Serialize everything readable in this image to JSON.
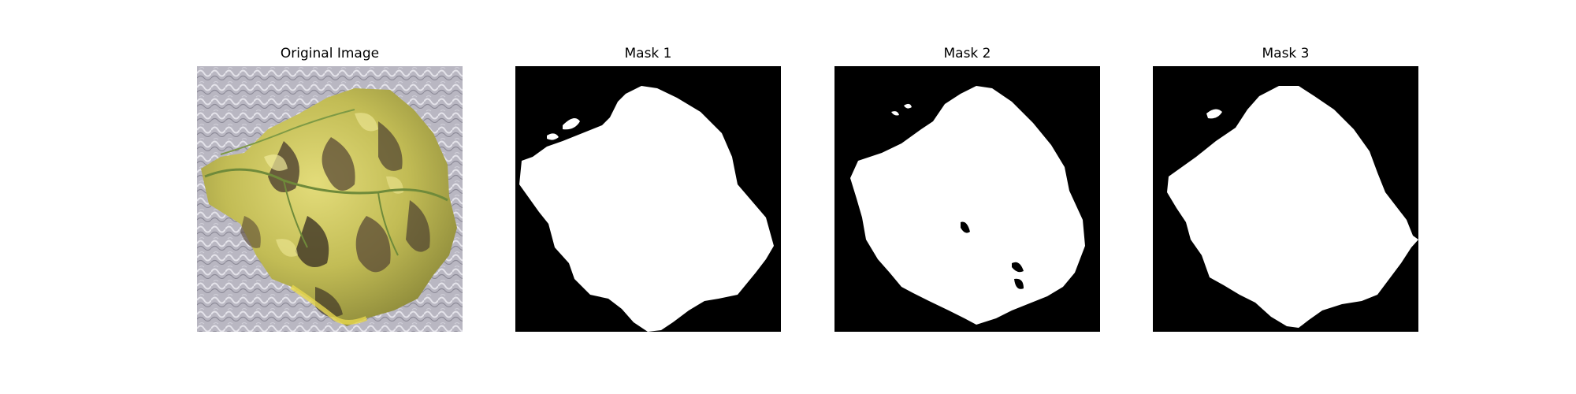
{
  "panels": [
    {
      "title": "Original Image"
    },
    {
      "title": "Mask 1"
    },
    {
      "title": "Mask 2"
    },
    {
      "title": "Mask 3"
    }
  ],
  "colors": {
    "background_texture": "#b9b7c2",
    "leaf_light": "#d6cf6a",
    "leaf_mid": "#a9a845",
    "leaf_dark": "#4d4030",
    "leaf_vein": "#6f8a3a",
    "mask_foreground": "#ffffff",
    "mask_background": "#000000"
  }
}
